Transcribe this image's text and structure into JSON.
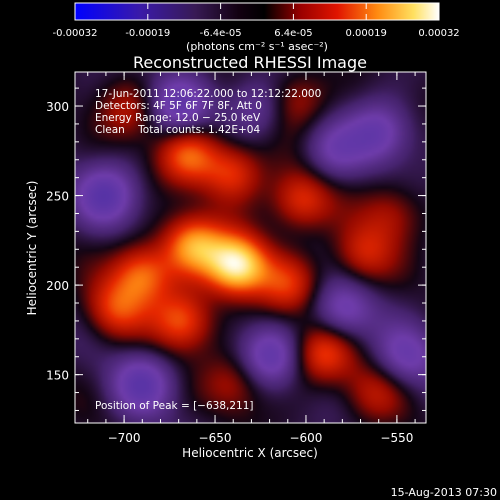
{
  "colorbar": {
    "tick_labels": [
      "-0.00032",
      "-0.00019",
      "-6.4e-05",
      "6.4e-05",
      "0.00019",
      "0.00032"
    ],
    "unit_label": "(photons cm⁻² s⁻¹ asec⁻²)",
    "range": [
      -0.00032,
      0.00032
    ]
  },
  "chart_data": {
    "type": "heatmap",
    "title": "Reconstructed RHESSI Image",
    "xlabel": "Heliocentric X (arcsec)",
    "ylabel": "Heliocentric Y (arcsec)",
    "xlim": [
      -727,
      -534
    ],
    "ylim": [
      123,
      319
    ],
    "x_ticks": [
      -700,
      -650,
      -600,
      -550
    ],
    "y_ticks": [
      150,
      200,
      250,
      300
    ],
    "x_tick_labels": [
      "−700",
      "−650",
      "−600",
      "−550"
    ],
    "y_tick_labels": [
      "150",
      "200",
      "250",
      "300"
    ],
    "peak": [
      -638,
      211
    ],
    "colormap": "heat (blue-purple-black-red-orange-yellow-white)",
    "bright_regions": [
      {
        "x": -638,
        "y": 211,
        "intensity": 1.0
      },
      {
        "x": -662,
        "y": 222,
        "intensity": 0.7
      },
      {
        "x": -690,
        "y": 206,
        "intensity": 0.6
      },
      {
        "x": -705,
        "y": 186,
        "intensity": 0.45
      },
      {
        "x": -668,
        "y": 180,
        "intensity": 0.55
      },
      {
        "x": -665,
        "y": 273,
        "intensity": 0.55
      },
      {
        "x": -640,
        "y": 263,
        "intensity": 0.5
      },
      {
        "x": -603,
        "y": 247,
        "intensity": 0.5
      },
      {
        "x": -610,
        "y": 200,
        "intensity": 0.4
      },
      {
        "x": -591,
        "y": 162,
        "intensity": 0.5
      },
      {
        "x": -569,
        "y": 217,
        "intensity": 0.4
      },
      {
        "x": -605,
        "y": 304,
        "intensity": 0.35
      },
      {
        "x": -553,
        "y": 240,
        "intensity": 0.3
      },
      {
        "x": -697,
        "y": 297,
        "intensity": 0.3
      },
      {
        "x": -563,
        "y": 140,
        "intensity": 0.3
      },
      {
        "x": -639,
        "y": 145,
        "intensity": 0.3
      }
    ],
    "dark_regions": [
      {
        "x": -670,
        "y": 300,
        "intensity": -0.5
      },
      {
        "x": -710,
        "y": 250,
        "intensity": -0.55
      },
      {
        "x": -620,
        "y": 160,
        "intensity": -0.5
      },
      {
        "x": -580,
        "y": 185,
        "intensity": -0.45
      },
      {
        "x": -690,
        "y": 145,
        "intensity": -0.5
      },
      {
        "x": -560,
        "y": 285,
        "intensity": -0.45
      },
      {
        "x": -585,
        "y": 275,
        "intensity": -0.35
      },
      {
        "x": -545,
        "y": 160,
        "intensity": -0.4
      },
      {
        "x": -628,
        "y": 300,
        "intensity": -0.35
      }
    ]
  },
  "annotations": {
    "time_range": "17-Jun-2011 12:06:22.000 to 12:12:22.000",
    "detectors": "Detectors: 4F 5F 6F 7F 8F, Att 0",
    "energy": "Energy Range: 12.0 − 25.0 keV",
    "clean": "Clean    Total counts: 1.42E+04",
    "peak": "Position of Peak = [−638,211]"
  },
  "footer": {
    "date": "15-Aug-2013 07:30"
  }
}
